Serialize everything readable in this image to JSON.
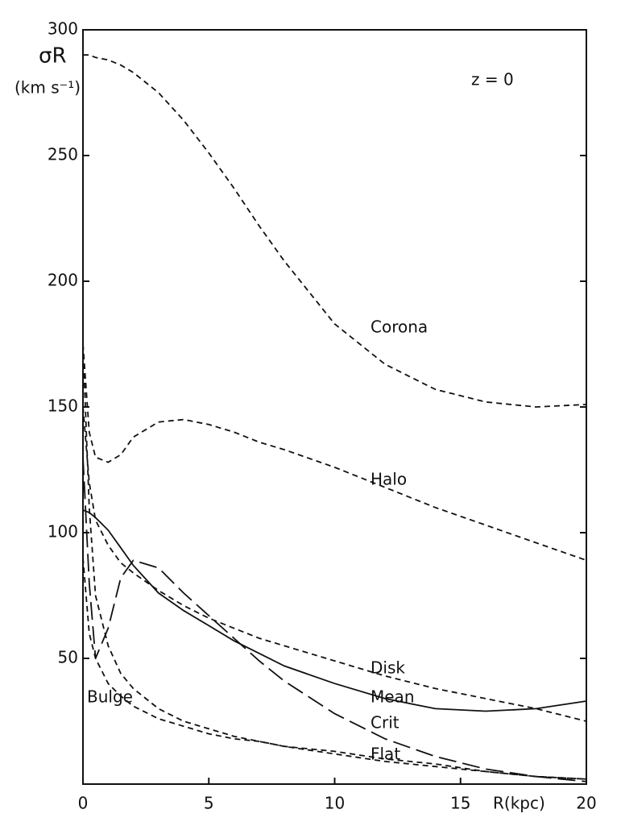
{
  "chart_data": {
    "type": "line",
    "y_label": "σR",
    "y_unit": "(km s⁻¹)",
    "x_label": "R(kpc)",
    "annotation": "z = 0",
    "x": [
      0,
      0.25,
      0.5,
      1,
      1.5,
      2,
      3,
      4,
      5,
      6,
      7,
      8,
      10,
      12,
      14,
      16,
      18,
      20
    ],
    "xlim": [
      0,
      20
    ],
    "ylim": [
      0,
      300
    ],
    "xticks": [
      0,
      5,
      10,
      15,
      20
    ],
    "yticks": [
      50,
      100,
      150,
      200,
      250,
      300
    ],
    "series": [
      {
        "name": "Corona",
        "color": "#111111",
        "style": "dashed",
        "values": [
          290,
          290,
          289,
          288,
          286,
          283,
          275,
          264,
          251,
          237,
          222,
          208,
          183,
          167,
          157,
          152,
          150,
          151
        ]
      },
      {
        "name": "Halo",
        "color": "#111111",
        "style": "dashed",
        "values": [
          175,
          140,
          130,
          128,
          131,
          138,
          144,
          145,
          143,
          140,
          136,
          133,
          126,
          118,
          110,
          103,
          96,
          89
        ]
      },
      {
        "name": "Disk",
        "color": "#111111",
        "style": "dashed",
        "values": [
          150,
          120,
          105,
          95,
          88,
          84,
          77,
          71,
          66,
          62,
          58,
          55,
          49,
          43,
          38,
          34,
          30,
          25
        ]
      },
      {
        "name": "Mean",
        "color": "#111111",
        "style": "solid",
        "values": [
          109,
          108,
          106,
          101,
          94,
          87,
          76,
          69,
          63,
          57,
          52,
          47,
          40,
          34,
          30,
          29,
          30,
          33
        ]
      },
      {
        "name": "Crit",
        "color": "#111111",
        "style": "long-dashed",
        "values": [
          130,
          80,
          50,
          62,
          82,
          89,
          86,
          76,
          67,
          58,
          49,
          41,
          28,
          18,
          11,
          6,
          3,
          1
        ]
      },
      {
        "name": "Flat",
        "color": "#111111",
        "style": "dashed",
        "values": [
          90,
          60,
          50,
          40,
          35,
          31,
          26,
          23,
          20,
          18,
          17,
          15,
          13,
          10,
          8,
          5,
          3,
          2
        ]
      },
      {
        "name": "Bulge",
        "color": "#111111",
        "style": "dashed",
        "values": [
          175,
          110,
          75,
          55,
          44,
          38,
          30,
          25,
          22,
          19,
          17,
          15,
          12,
          9,
          7,
          5,
          3,
          2
        ]
      }
    ]
  }
}
